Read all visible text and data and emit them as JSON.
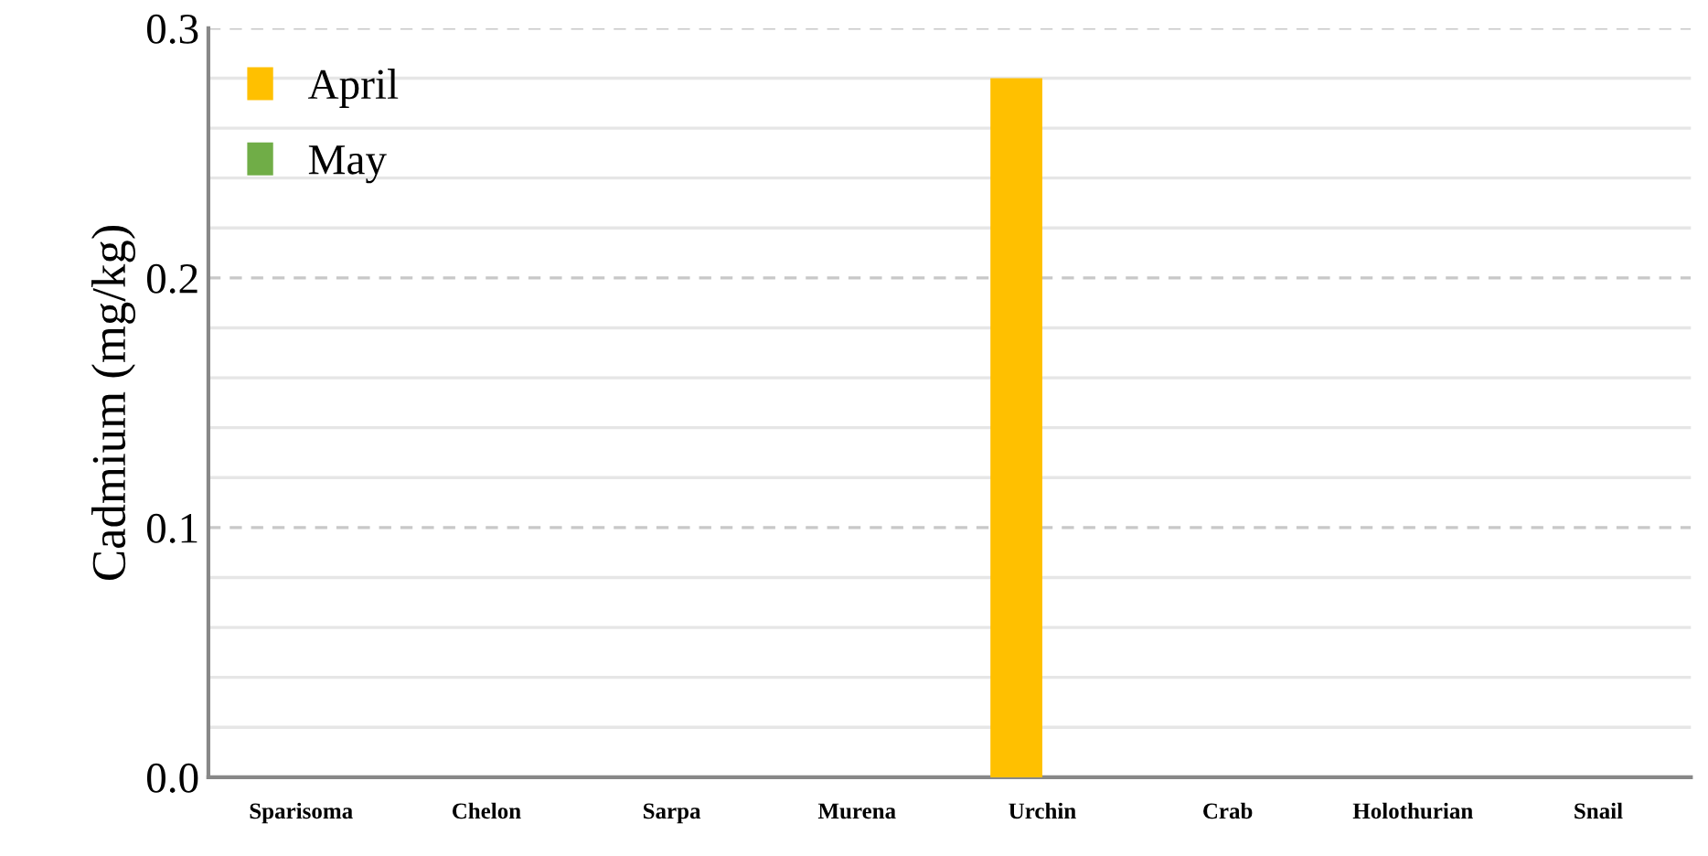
{
  "chart_data": {
    "type": "bar",
    "ylabel": "Cadmium (mg/kg)",
    "categories": [
      "Sparisoma",
      "Chelon",
      "Sarpa",
      "Murena",
      "Urchin",
      "Crab",
      "Holothurian",
      "Snail"
    ],
    "series": [
      {
        "name": "April",
        "color": "#ffc000",
        "values": [
          0,
          0,
          0,
          0,
          0.28,
          0,
          0,
          0
        ]
      },
      {
        "name": "May",
        "color": "#70ad47",
        "values": [
          0,
          0,
          0,
          0,
          0,
          0,
          0,
          0
        ]
      }
    ],
    "ylim": [
      0,
      0.3
    ],
    "yticks": [
      {
        "value": 0,
        "label": "0.0"
      },
      {
        "value": 0.02,
        "label": null
      },
      {
        "value": 0.04,
        "label": null
      },
      {
        "value": 0.06,
        "label": null
      },
      {
        "value": 0.08,
        "label": null
      },
      {
        "value": 0.1,
        "label": "0.1"
      },
      {
        "value": 0.12,
        "label": null
      },
      {
        "value": 0.14,
        "label": null
      },
      {
        "value": 0.16,
        "label": null
      },
      {
        "value": 0.18,
        "label": null
      },
      {
        "value": 0.2,
        "label": "0.2"
      },
      {
        "value": 0.22,
        "label": null
      },
      {
        "value": 0.24,
        "label": null
      },
      {
        "value": 0.26,
        "label": null
      },
      {
        "value": 0.28,
        "label": null
      },
      {
        "value": 0.3,
        "label": "0.3"
      }
    ],
    "grid": "y",
    "legend": "top left"
  }
}
